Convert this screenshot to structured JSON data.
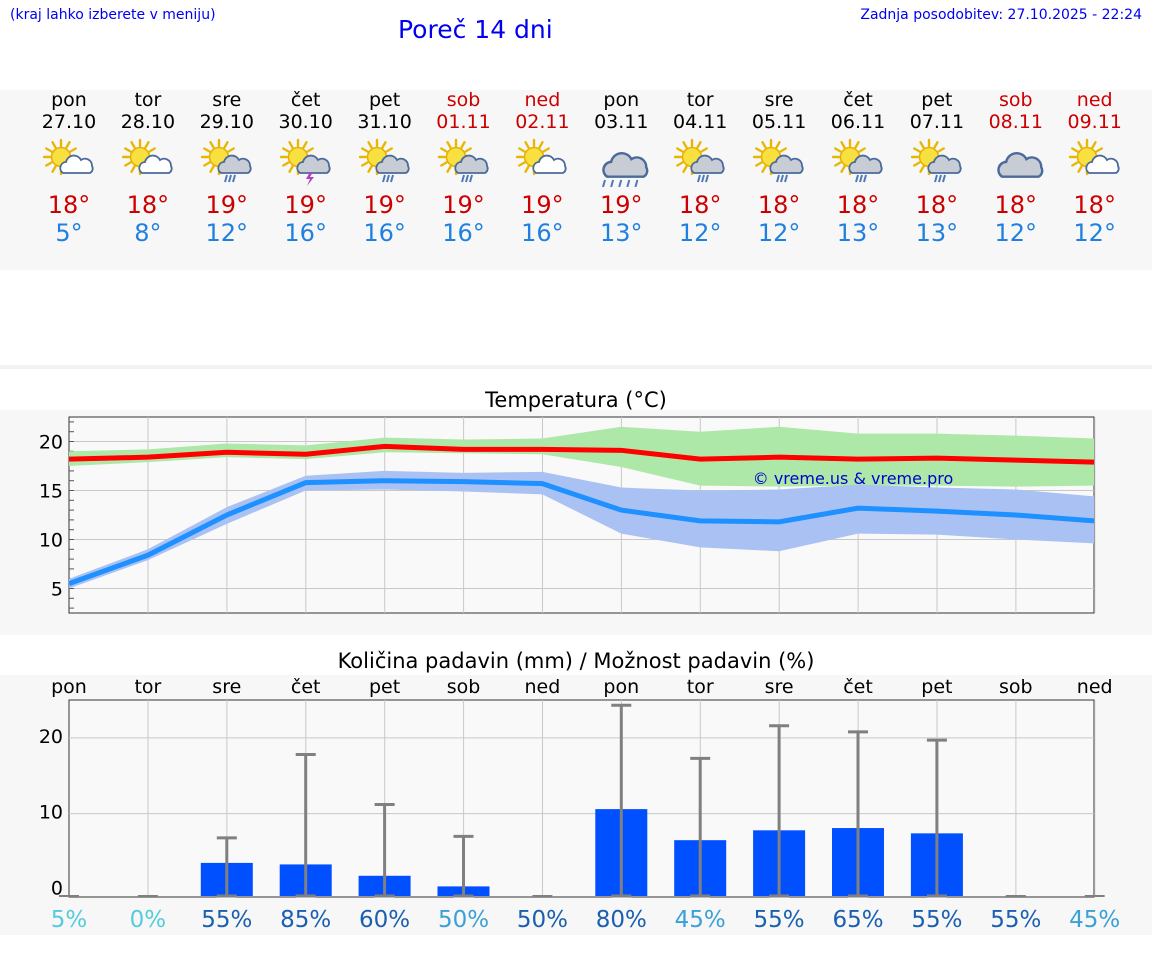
{
  "header": {
    "menu_hint": "(kraj lahko izberete v meniju)",
    "title": "Poreč 14 dni",
    "updated": "Zadnja posodobitev: 27.10.2025 - 22:24"
  },
  "colors": {
    "max": "#ff0000",
    "min": "#1e90ff",
    "max_band": "#aee8a8",
    "min_band": "#a9c2f3",
    "bar": "#0050ff",
    "link": "#0000ee"
  },
  "days": [
    {
      "name": "pon",
      "date": "27.10",
      "tmax": "18°",
      "tmin": "5°",
      "weekend": false,
      "icon": "sun-cloud-icon"
    },
    {
      "name": "tor",
      "date": "28.10",
      "tmax": "18°",
      "tmin": "8°",
      "weekend": false,
      "icon": "sun-cloud-icon"
    },
    {
      "name": "sre",
      "date": "29.10",
      "tmax": "19°",
      "tmin": "12°",
      "weekend": false,
      "icon": "sun-cloud-rain-icon"
    },
    {
      "name": "čet",
      "date": "30.10",
      "tmax": "19°",
      "tmin": "16°",
      "weekend": false,
      "icon": "sun-thunder-icon"
    },
    {
      "name": "pet",
      "date": "31.10",
      "tmax": "19°",
      "tmin": "16°",
      "weekend": false,
      "icon": "sun-cloud-rain-icon"
    },
    {
      "name": "sob",
      "date": "01.11",
      "tmax": "19°",
      "tmin": "16°",
      "weekend": true,
      "icon": "sun-cloud-rain-icon"
    },
    {
      "name": "ned",
      "date": "02.11",
      "tmax": "19°",
      "tmin": "16°",
      "weekend": true,
      "icon": "sun-cloud-icon"
    },
    {
      "name": "pon",
      "date": "03.11",
      "tmax": "19°",
      "tmin": "13°",
      "weekend": false,
      "icon": "cloud-rain-icon"
    },
    {
      "name": "tor",
      "date": "04.11",
      "tmax": "18°",
      "tmin": "12°",
      "weekend": false,
      "icon": "sun-cloud-rain-icon"
    },
    {
      "name": "sre",
      "date": "05.11",
      "tmax": "18°",
      "tmin": "12°",
      "weekend": false,
      "icon": "sun-cloud-rain-icon"
    },
    {
      "name": "čet",
      "date": "06.11",
      "tmax": "18°",
      "tmin": "13°",
      "weekend": false,
      "icon": "sun-cloud-rain-icon"
    },
    {
      "name": "pet",
      "date": "07.11",
      "tmax": "18°",
      "tmin": "13°",
      "weekend": false,
      "icon": "sun-cloud-rain-icon"
    },
    {
      "name": "sob",
      "date": "08.11",
      "tmax": "18°",
      "tmin": "12°",
      "weekend": true,
      "icon": "cloud-icon"
    },
    {
      "name": "ned",
      "date": "09.11",
      "tmax": "18°",
      "tmin": "12°",
      "weekend": true,
      "icon": "sun-cloud-icon"
    }
  ],
  "chart_data": [
    {
      "type": "line",
      "title": "Temperatura (°C)",
      "ylim": [
        2.5,
        22.5
      ],
      "yticks": [
        5,
        10,
        15,
        20
      ],
      "grid": true,
      "series": [
        {
          "name": "max",
          "values": [
            18.2,
            18.4,
            18.9,
            18.7,
            19.5,
            19.2,
            19.2,
            19.1,
            18.2,
            18.4,
            18.2,
            18.3,
            18.1,
            17.9
          ],
          "band_low": [
            17.5,
            17.9,
            18.4,
            18.2,
            18.9,
            18.8,
            18.7,
            17.4,
            15.5,
            15.4,
            15.5,
            15.5,
            15.4,
            15.5
          ],
          "band_high": [
            19.0,
            19.2,
            19.8,
            19.6,
            20.4,
            20.2,
            20.3,
            21.5,
            21.0,
            21.5,
            20.8,
            20.8,
            20.6,
            20.3
          ]
        },
        {
          "name": "min",
          "values": [
            5.5,
            8.4,
            12.5,
            15.8,
            16.0,
            15.9,
            15.7,
            13.0,
            11.9,
            11.8,
            13.2,
            12.9,
            12.5,
            11.9
          ],
          "band_low": [
            5.0,
            7.9,
            11.6,
            15.0,
            15.1,
            14.9,
            14.6,
            10.6,
            9.2,
            8.8,
            10.6,
            10.5,
            10.0,
            9.6
          ],
          "band_high": [
            6.0,
            9.0,
            13.3,
            16.5,
            17.0,
            16.8,
            16.9,
            15.3,
            15.0,
            15.1,
            15.6,
            15.3,
            15.1,
            14.4
          ]
        }
      ],
      "watermark": "© vreme.us & vreme.pro"
    },
    {
      "type": "bar",
      "title": "Količina padavin (mm) / Možnost padavin (%)",
      "categories": [
        "pon",
        "tor",
        "sre",
        "čet",
        "pet",
        "sob",
        "ned",
        "pon",
        "tor",
        "sre",
        "čet",
        "pet",
        "sob",
        "ned"
      ],
      "ylim": [
        -1,
        25
      ],
      "yticks": [
        0,
        10,
        20
      ],
      "values": [
        0,
        0,
        3.5,
        3.3,
        1.8,
        0.4,
        0,
        10.6,
        6.5,
        7.8,
        8.1,
        7.4,
        0,
        0
      ],
      "error_high": [
        0,
        0,
        6.8,
        17.8,
        11.2,
        7.0,
        0,
        24.3,
        17.3,
        21.6,
        20.8,
        19.7,
        0,
        0
      ],
      "probability": [
        "5%",
        "0%",
        "55%",
        "85%",
        "60%",
        "50%",
        "50%",
        "80%",
        "45%",
        "55%",
        "65%",
        "55%",
        "55%",
        "45%"
      ],
      "probability_colors": [
        "#55ccdd",
        "#55ccdd",
        "#1a5fb0",
        "#1a5fb0",
        "#1a5fb0",
        "#3aa0d8",
        "#1a5fb0",
        "#1a5fb0",
        "#3aa0d8",
        "#1a5fb0",
        "#1a5fb0",
        "#1a5fb0",
        "#1a5fb0",
        "#3aa0d8"
      ]
    }
  ]
}
